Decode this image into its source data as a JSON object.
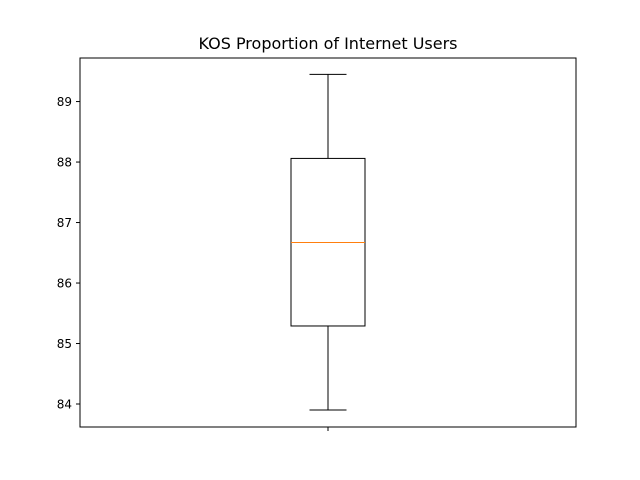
{
  "chart_data": {
    "type": "boxplot",
    "title": "KOS Proportion of Internet Users",
    "xlabel": "",
    "ylabel": "",
    "ylim": [
      83.62,
      89.72
    ],
    "yticks": [
      84,
      85,
      86,
      87,
      88,
      89
    ],
    "xticks": [
      ""
    ],
    "grid": false,
    "boxes": [
      {
        "whisker_low": 83.9,
        "q1": 85.29,
        "median": 86.67,
        "q3": 88.06,
        "whisker_high": 89.45
      }
    ],
    "colors": {
      "box": "#000000",
      "median": "#ff7f0e",
      "axes": "#000000",
      "background": "#ffffff"
    }
  }
}
